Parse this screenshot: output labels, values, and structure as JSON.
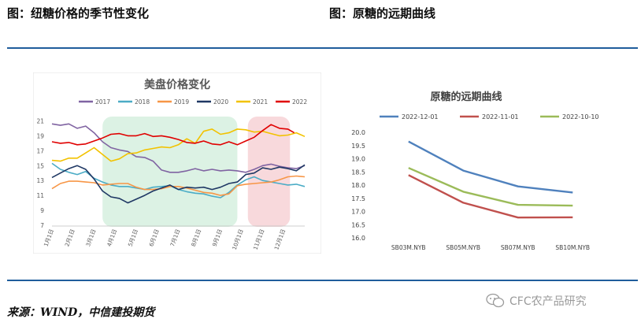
{
  "header": {
    "left_title": "图：纽糖价格的季节性变化",
    "right_title": "图：原糖的远期曲线"
  },
  "footer": {
    "source": "来源：WIND，中信建投期货",
    "watermark": "CFC农产品研究"
  },
  "colors": {
    "rule": "#1f5d9c",
    "band_green": "#dcf2e4",
    "band_pink": "#f8d9dc"
  },
  "chart_data": [
    {
      "type": "line",
      "title": "美盘价格变化",
      "x_tick_labels": [
        "1月1日",
        "2月1日",
        "3月1日",
        "4月1日",
        "5月1日",
        "6月1日",
        "7月1日",
        "8月1日",
        "9月1日",
        "10月1日",
        "11月1日",
        "12月1日"
      ],
      "y_ticks": [
        7,
        9,
        11,
        13,
        15,
        17,
        19,
        21
      ],
      "ylim": [
        7,
        22
      ],
      "xlim": [
        0,
        12
      ],
      "highlight_bands": [
        {
          "from_month": 2.4,
          "to_month": 8.8,
          "color": "#dcf2e4"
        },
        {
          "from_month": 9.3,
          "to_month": 11.3,
          "color": "#f8d9dc"
        }
      ],
      "series": [
        {
          "name": "2017",
          "color": "#8064a2",
          "points": [
            [
              0,
              20.6
            ],
            [
              0.4,
              20.4
            ],
            [
              0.8,
              20.6
            ],
            [
              1.2,
              20.0
            ],
            [
              1.6,
              20.3
            ],
            [
              2.0,
              19.4
            ],
            [
              2.4,
              18.2
            ],
            [
              2.8,
              17.4
            ],
            [
              3.2,
              17.1
            ],
            [
              3.6,
              16.9
            ],
            [
              4.0,
              16.2
            ],
            [
              4.4,
              16.1
            ],
            [
              4.8,
              15.6
            ],
            [
              5.2,
              14.4
            ],
            [
              5.6,
              14.1
            ],
            [
              6.0,
              14.1
            ],
            [
              6.4,
              14.3
            ],
            [
              6.8,
              14.6
            ],
            [
              7.2,
              14.3
            ],
            [
              7.6,
              14.5
            ],
            [
              8.0,
              14.3
            ],
            [
              8.4,
              14.4
            ],
            [
              8.8,
              14.3
            ],
            [
              9.2,
              14.1
            ],
            [
              9.6,
              14.5
            ],
            [
              10.0,
              15.0
            ],
            [
              10.4,
              15.2
            ],
            [
              10.8,
              14.9
            ],
            [
              11.2,
              14.7
            ],
            [
              11.6,
              14.6
            ],
            [
              12.0,
              15.0
            ]
          ]
        },
        {
          "name": "2018",
          "color": "#4bacc6",
          "points": [
            [
              0,
              15.3
            ],
            [
              0.4,
              14.5
            ],
            [
              0.8,
              14.1
            ],
            [
              1.2,
              13.8
            ],
            [
              1.6,
              14.2
            ],
            [
              2.0,
              13.3
            ],
            [
              2.4,
              12.8
            ],
            [
              2.8,
              12.4
            ],
            [
              3.2,
              12.2
            ],
            [
              3.6,
              12.2
            ],
            [
              4.0,
              12.0
            ],
            [
              4.4,
              11.8
            ],
            [
              4.8,
              12.1
            ],
            [
              5.2,
              12.2
            ],
            [
              5.6,
              12.3
            ],
            [
              6.0,
              11.8
            ],
            [
              6.4,
              11.5
            ],
            [
              6.8,
              11.3
            ],
            [
              7.2,
              11.2
            ],
            [
              7.6,
              10.9
            ],
            [
              8.0,
              10.7
            ],
            [
              8.4,
              11.4
            ],
            [
              8.8,
              12.4
            ],
            [
              9.2,
              13.1
            ],
            [
              9.6,
              13.5
            ],
            [
              10.0,
              13.0
            ],
            [
              10.4,
              12.8
            ],
            [
              10.8,
              12.6
            ],
            [
              11.2,
              12.4
            ],
            [
              11.6,
              12.5
            ],
            [
              12.0,
              12.2
            ]
          ]
        },
        {
          "name": "2019",
          "color": "#f79646",
          "points": [
            [
              0,
              11.9
            ],
            [
              0.4,
              12.6
            ],
            [
              0.8,
              12.9
            ],
            [
              1.2,
              12.9
            ],
            [
              1.6,
              12.8
            ],
            [
              2.0,
              12.7
            ],
            [
              2.4,
              12.4
            ],
            [
              2.8,
              12.5
            ],
            [
              3.2,
              12.6
            ],
            [
              3.6,
              12.6
            ],
            [
              4.0,
              12.1
            ],
            [
              4.4,
              11.8
            ],
            [
              4.8,
              11.8
            ],
            [
              5.2,
              11.9
            ],
            [
              5.6,
              12.2
            ],
            [
              6.0,
              12.2
            ],
            [
              6.4,
              12.0
            ],
            [
              6.8,
              11.7
            ],
            [
              7.2,
              11.4
            ],
            [
              7.6,
              11.3
            ],
            [
              8.0,
              11.0
            ],
            [
              8.4,
              11.2
            ],
            [
              8.8,
              12.3
            ],
            [
              9.2,
              12.5
            ],
            [
              9.6,
              12.6
            ],
            [
              10.0,
              12.7
            ],
            [
              10.4,
              12.8
            ],
            [
              10.8,
              13.1
            ],
            [
              11.2,
              13.5
            ],
            [
              11.6,
              13.6
            ],
            [
              12.0,
              13.5
            ]
          ]
        },
        {
          "name": "2020",
          "color": "#1f3864",
          "points": [
            [
              0,
              13.4
            ],
            [
              0.4,
              14.0
            ],
            [
              0.8,
              14.6
            ],
            [
              1.2,
              15.0
            ],
            [
              1.6,
              14.5
            ],
            [
              2.0,
              13.2
            ],
            [
              2.4,
              11.6
            ],
            [
              2.8,
              10.8
            ],
            [
              3.2,
              10.6
            ],
            [
              3.6,
              10.0
            ],
            [
              4.0,
              10.5
            ],
            [
              4.4,
              11.0
            ],
            [
              4.8,
              11.6
            ],
            [
              5.2,
              12.0
            ],
            [
              5.6,
              12.4
            ],
            [
              6.0,
              11.8
            ],
            [
              6.4,
              12.1
            ],
            [
              6.8,
              12.0
            ],
            [
              7.2,
              12.1
            ],
            [
              7.6,
              11.8
            ],
            [
              8.0,
              12.1
            ],
            [
              8.4,
              12.6
            ],
            [
              8.8,
              12.8
            ],
            [
              9.2,
              13.8
            ],
            [
              9.6,
              14.0
            ],
            [
              10.0,
              14.7
            ],
            [
              10.4,
              14.5
            ],
            [
              10.8,
              14.8
            ],
            [
              11.2,
              14.6
            ],
            [
              11.6,
              14.3
            ],
            [
              12.0,
              15.1
            ]
          ]
        },
        {
          "name": "2021",
          "color": "#f2c200",
          "points": [
            [
              0,
              15.7
            ],
            [
              0.4,
              15.6
            ],
            [
              0.8,
              16.0
            ],
            [
              1.2,
              16.0
            ],
            [
              1.6,
              16.7
            ],
            [
              2.0,
              17.4
            ],
            [
              2.4,
              16.5
            ],
            [
              2.8,
              15.6
            ],
            [
              3.2,
              15.9
            ],
            [
              3.6,
              16.6
            ],
            [
              4.0,
              16.7
            ],
            [
              4.4,
              17.1
            ],
            [
              4.8,
              17.3
            ],
            [
              5.2,
              17.5
            ],
            [
              5.6,
              17.4
            ],
            [
              6.0,
              17.8
            ],
            [
              6.4,
              18.6
            ],
            [
              6.8,
              18.0
            ],
            [
              7.2,
              19.6
            ],
            [
              7.6,
              19.9
            ],
            [
              8.0,
              19.2
            ],
            [
              8.4,
              19.4
            ],
            [
              8.8,
              19.9
            ],
            [
              9.2,
              19.8
            ],
            [
              9.6,
              19.5
            ],
            [
              10.0,
              19.6
            ],
            [
              10.4,
              19.3
            ],
            [
              10.8,
              19.0
            ],
            [
              11.2,
              19.1
            ],
            [
              11.6,
              19.4
            ],
            [
              12.0,
              18.9
            ]
          ]
        },
        {
          "name": "2022",
          "color": "#e00000",
          "points": [
            [
              0,
              18.2
            ],
            [
              0.4,
              18.0
            ],
            [
              0.8,
              18.1
            ],
            [
              1.2,
              17.8
            ],
            [
              1.6,
              17.9
            ],
            [
              2.0,
              18.3
            ],
            [
              2.4,
              18.7
            ],
            [
              2.8,
              19.2
            ],
            [
              3.2,
              19.3
            ],
            [
              3.6,
              19.0
            ],
            [
              4.0,
              19.0
            ],
            [
              4.4,
              19.3
            ],
            [
              4.8,
              18.9
            ],
            [
              5.2,
              19.0
            ],
            [
              5.6,
              18.8
            ],
            [
              6.0,
              18.5
            ],
            [
              6.4,
              18.1
            ],
            [
              6.8,
              18.0
            ],
            [
              7.2,
              18.3
            ],
            [
              7.6,
              17.9
            ],
            [
              8.0,
              17.8
            ],
            [
              8.4,
              18.2
            ],
            [
              8.8,
              17.8
            ],
            [
              9.2,
              18.3
            ],
            [
              9.6,
              18.8
            ],
            [
              10.0,
              19.7
            ],
            [
              10.4,
              20.5
            ],
            [
              10.8,
              20.0
            ],
            [
              11.2,
              19.9
            ],
            [
              11.5,
              19.4
            ]
          ]
        }
      ]
    },
    {
      "type": "line",
      "title": "原糖的远期曲线",
      "categories": [
        "SB03M.NYB",
        "SB05M.NYB",
        "SB07M.NYB",
        "SB10M.NYB"
      ],
      "y_ticks": [
        16.0,
        16.5,
        17.0,
        17.5,
        18.0,
        18.5,
        19.0,
        19.5,
        20.0
      ],
      "ylim": [
        16.0,
        20.0
      ],
      "series": [
        {
          "name": "2022-12-01",
          "color": "#4f81bd",
          "values": [
            19.65,
            18.55,
            17.95,
            17.72
          ]
        },
        {
          "name": "2022-11-01",
          "color": "#c0504d",
          "values": [
            18.38,
            17.33,
            16.77,
            16.78
          ]
        },
        {
          "name": "2022-10-10",
          "color": "#9bbb59",
          "values": [
            18.65,
            17.75,
            17.25,
            17.22
          ]
        }
      ]
    }
  ]
}
